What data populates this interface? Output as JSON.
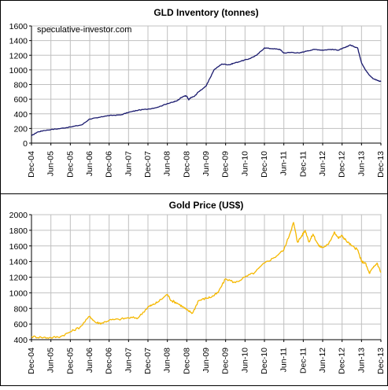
{
  "colors": {
    "frame": "#000000",
    "grid": "#c0c0c0",
    "plot_border": "#808080",
    "inventory_line": "#1a1a6e",
    "gold_line": "#f5b800"
  },
  "watermark": "speculative-investor.com",
  "chart_data": [
    {
      "type": "line",
      "title": "GLD Inventory (tonnes)",
      "xlabel": "",
      "ylabel": "",
      "ylim": [
        0,
        1600
      ],
      "yticks": [
        0,
        200,
        400,
        600,
        800,
        1000,
        1200,
        1400,
        1600
      ],
      "x_tick_labels": [
        "Dec-04",
        "Jun-05",
        "Dec-05",
        "Jun-06",
        "Dec-06",
        "Jun-07",
        "Dec-07",
        "Jun-08",
        "Dec-08",
        "Jun-09",
        "Dec-09",
        "Jun-10",
        "Dec-10",
        "Jun-11",
        "Dec-11",
        "Jun-12",
        "Dec-12",
        "Jun-13",
        "Dec-13"
      ],
      "grid": true,
      "legend": "none",
      "series": [
        {
          "x": [
            0,
            0.3,
            0.6,
            1,
            1.5,
            2,
            2.6,
            3,
            3.4,
            3.8,
            4.2,
            4.6,
            5,
            5.5,
            6,
            6.5,
            7,
            7.3,
            7.5,
            7.7,
            7.9,
            8,
            8.1,
            8.2,
            8.4,
            8.6,
            9,
            9.4,
            9.8,
            10.2,
            10.4,
            10.8,
            11.2,
            11.6,
            12,
            12.4,
            12.8,
            13,
            13.4,
            13.8,
            14.2,
            14.6,
            15,
            15.4,
            15.8,
            16,
            16.2,
            16.4,
            16.6,
            16.8,
            17,
            17.2,
            17.4,
            17.6,
            17.8,
            18
          ],
          "y": [
            100,
            150,
            170,
            185,
            200,
            220,
            250,
            330,
            345,
            370,
            380,
            385,
            420,
            450,
            465,
            490,
            540,
            560,
            580,
            620,
            645,
            640,
            590,
            620,
            640,
            700,
            780,
            1000,
            1080,
            1070,
            1090,
            1120,
            1150,
            1200,
            1300,
            1290,
            1280,
            1230,
            1240,
            1230,
            1260,
            1280,
            1270,
            1280,
            1270,
            1290,
            1310,
            1340,
            1320,
            1300,
            1100,
            1000,
            930,
            880,
            860,
            840
          ]
        }
      ]
    },
    {
      "type": "line",
      "title": "Gold Price (US$)",
      "xlabel": "",
      "ylabel": "",
      "ylim": [
        400,
        2000
      ],
      "yticks": [
        400,
        600,
        800,
        1000,
        1200,
        1400,
        1600,
        1800,
        2000
      ],
      "x_tick_labels": [
        "Dec-04",
        "Jun-05",
        "Dec-05",
        "Jun-06",
        "Dec-06",
        "Jun-07",
        "Dec-07",
        "Jun-08",
        "Dec-08",
        "Jun-09",
        "Dec-09",
        "Jun-10",
        "Dec-10",
        "Jun-11",
        "Dec-11",
        "Jun-12",
        "Dec-12",
        "Jun-13",
        "Dec-13"
      ],
      "grid": true,
      "legend": "none",
      "series": [
        {
          "x": [
            0,
            0.5,
            1,
            1.5,
            2,
            2.5,
            3,
            3.3,
            3.6,
            4,
            4.5,
            5,
            5.5,
            6,
            6.2,
            6.5,
            7,
            7.2,
            7.5,
            7.8,
            8,
            8.3,
            8.6,
            9,
            9.3,
            9.6,
            10,
            10.5,
            11,
            11.5,
            12,
            12.5,
            13,
            13.3,
            13.5,
            13.7,
            13.9,
            14.1,
            14.3,
            14.5,
            14.8,
            15,
            15.3,
            15.6,
            15.8,
            16,
            16.2,
            16.5,
            16.8,
            17,
            17.2,
            17.4,
            17.6,
            17.8,
            18
          ],
          "y": [
            440,
            430,
            425,
            440,
            500,
            560,
            700,
            620,
            610,
            650,
            660,
            680,
            680,
            820,
            840,
            880,
            980,
            900,
            870,
            820,
            780,
            740,
            900,
            930,
            950,
            1000,
            1180,
            1130,
            1200,
            1260,
            1380,
            1450,
            1550,
            1750,
            1900,
            1650,
            1720,
            1800,
            1650,
            1750,
            1600,
            1580,
            1620,
            1780,
            1700,
            1730,
            1670,
            1600,
            1550,
            1400,
            1380,
            1250,
            1320,
            1380,
            1260
          ]
        }
      ]
    }
  ]
}
